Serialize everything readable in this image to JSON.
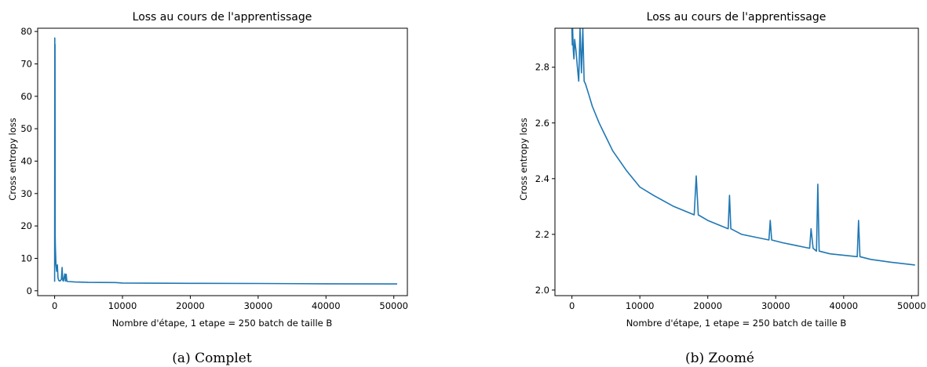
{
  "colors": {
    "line": "#1f77b4",
    "axis": "#000000",
    "background": "#ffffff"
  },
  "chart_data": [
    {
      "type": "line",
      "title": "Loss au cours de l'apprentissage",
      "xlabel": "Nombre d'étape, 1 etape = 250 batch de taille B",
      "ylabel": "Cross entropy loss",
      "caption": "(a) Complet",
      "xlim": [
        -2500,
        52000
      ],
      "ylim": [
        -1.5,
        81
      ],
      "xticks": [
        0,
        10000,
        20000,
        30000,
        40000,
        50000
      ],
      "xtick_labels": [
        "0",
        "10000",
        "20000",
        "30000",
        "40000",
        "50000"
      ],
      "yticks": [
        0,
        10,
        20,
        30,
        40,
        50,
        60,
        70,
        80
      ],
      "ytick_labels": [
        "0",
        "10",
        "20",
        "30",
        "40",
        "50",
        "60",
        "70",
        "80"
      ],
      "grid": false,
      "series": [
        {
          "x": [
            0,
            20,
            40,
            60,
            80,
            100,
            150,
            200,
            300,
            400,
            500,
            600,
            800,
            1000,
            1100,
            1200,
            1300,
            1500,
            1600,
            1700,
            1800,
            2000,
            3000,
            5000,
            9000,
            10000,
            20000,
            30000,
            40000,
            50500
          ],
          "y": [
            2.8,
            78,
            60,
            76,
            17,
            14,
            11,
            8,
            6,
            8,
            4,
            3.2,
            3,
            3.5,
            7.2,
            3.2,
            3.0,
            5.2,
            3.0,
            5.1,
            2.9,
            2.85,
            2.7,
            2.6,
            2.55,
            2.4,
            2.3,
            2.25,
            2.15,
            2.1
          ]
        }
      ]
    },
    {
      "type": "line",
      "title": "Loss au cours de l'apprentissage",
      "xlabel": "Nombre d'étape, 1 etape = 250 batch de taille B",
      "ylabel": "Cross entropy loss",
      "caption": "(b) Zoomé",
      "xlim": [
        -2500,
        51000
      ],
      "ylim": [
        1.98,
        2.94
      ],
      "xticks": [
        0,
        10000,
        20000,
        30000,
        40000,
        50000
      ],
      "xtick_labels": [
        "0",
        "10000",
        "20000",
        "30000",
        "40000",
        "50000"
      ],
      "yticks": [
        2.0,
        2.2,
        2.4,
        2.6,
        2.8
      ],
      "ytick_labels": [
        "2.0",
        "2.2",
        "2.4",
        "2.6",
        "2.8"
      ],
      "grid": false,
      "series": [
        {
          "x": [
            0,
            50,
            100,
            200,
            300,
            400,
            600,
            800,
            1000,
            1200,
            1400,
            1600,
            1800,
            2000,
            2500,
            3000,
            4000,
            5000,
            6000,
            8000,
            10000,
            12000,
            15000,
            18000,
            18300,
            18600,
            20000,
            23000,
            23200,
            23400,
            25000,
            29000,
            29200,
            29400,
            31000,
            35000,
            35200,
            35500,
            36000,
            36200,
            36400,
            38000,
            42000,
            42200,
            42400,
            44000,
            47000,
            50500
          ],
          "y": [
            2.94,
            2.88,
            2.94,
            2.86,
            2.83,
            2.9,
            2.86,
            2.8,
            2.75,
            2.94,
            2.78,
            2.94,
            2.75,
            2.74,
            2.7,
            2.66,
            2.6,
            2.55,
            2.5,
            2.43,
            2.37,
            2.34,
            2.3,
            2.27,
            2.41,
            2.27,
            2.25,
            2.22,
            2.34,
            2.22,
            2.2,
            2.18,
            2.25,
            2.18,
            2.17,
            2.15,
            2.22,
            2.15,
            2.14,
            2.38,
            2.14,
            2.13,
            2.12,
            2.25,
            2.12,
            2.11,
            2.1,
            2.09
          ]
        }
      ]
    }
  ]
}
